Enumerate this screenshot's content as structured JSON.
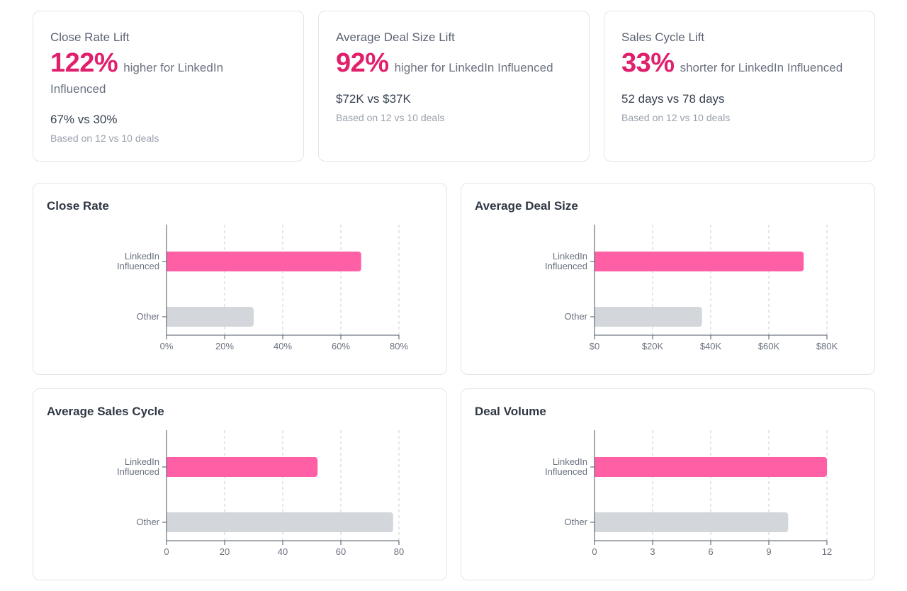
{
  "stats": [
    {
      "title": "Close Rate Lift",
      "lift": "122%",
      "suffix": "higher for LinkedIn Influenced",
      "comparison": "67% vs 30%",
      "basis": "Based on 12 vs 10 deals"
    },
    {
      "title": "Average Deal Size Lift",
      "lift": "92%",
      "suffix": "higher for LinkedIn Influenced",
      "comparison": "$72K vs $37K",
      "basis": "Based on 12 vs 10 deals"
    },
    {
      "title": "Sales Cycle Lift",
      "lift": "33%",
      "suffix": "shorter for LinkedIn Influenced",
      "comparison": "52 days vs 78 days",
      "basis": "Based on 12 vs 10 deals"
    }
  ],
  "colors": {
    "accent": "#e0206c",
    "linkedin_bar": "#ff5fa5",
    "other_bar": "#d3d6db"
  },
  "chart_data": [
    {
      "type": "bar",
      "orientation": "horizontal",
      "title": "Close Rate",
      "categories": [
        "LinkedIn Influenced",
        "Other"
      ],
      "category_lines": [
        [
          "LinkedIn",
          "Influenced"
        ],
        [
          "Other"
        ]
      ],
      "values": [
        67,
        30
      ],
      "xlim": [
        0,
        80
      ],
      "ticks": [
        0,
        20,
        40,
        60,
        80
      ],
      "tick_labels": [
        "0%",
        "20%",
        "40%",
        "60%",
        "80%"
      ]
    },
    {
      "type": "bar",
      "orientation": "horizontal",
      "title": "Average Deal Size",
      "categories": [
        "LinkedIn Influenced",
        "Other"
      ],
      "category_lines": [
        [
          "LinkedIn",
          "Influenced"
        ],
        [
          "Other"
        ]
      ],
      "values": [
        72,
        37
      ],
      "xlim": [
        0,
        80
      ],
      "ticks": [
        0,
        20,
        40,
        60,
        80
      ],
      "tick_labels": [
        "$0",
        "$20K",
        "$40K",
        "$60K",
        "$80K"
      ]
    },
    {
      "type": "bar",
      "orientation": "horizontal",
      "title": "Average Sales Cycle",
      "categories": [
        "LinkedIn Influenced",
        "Other"
      ],
      "category_lines": [
        [
          "LinkedIn",
          "Influenced"
        ],
        [
          "Other"
        ]
      ],
      "values": [
        52,
        78
      ],
      "xlim": [
        0,
        80
      ],
      "ticks": [
        0,
        20,
        40,
        60,
        80
      ],
      "tick_labels": [
        "0",
        "20",
        "40",
        "60",
        "80"
      ]
    },
    {
      "type": "bar",
      "orientation": "horizontal",
      "title": "Deal Volume",
      "categories": [
        "LinkedIn Influenced",
        "Other"
      ],
      "category_lines": [
        [
          "LinkedIn",
          "Influenced"
        ],
        [
          "Other"
        ]
      ],
      "values": [
        12,
        10
      ],
      "xlim": [
        0,
        12
      ],
      "ticks": [
        0,
        3,
        6,
        9,
        12
      ],
      "tick_labels": [
        "0",
        "3",
        "6",
        "9",
        "12"
      ]
    }
  ]
}
